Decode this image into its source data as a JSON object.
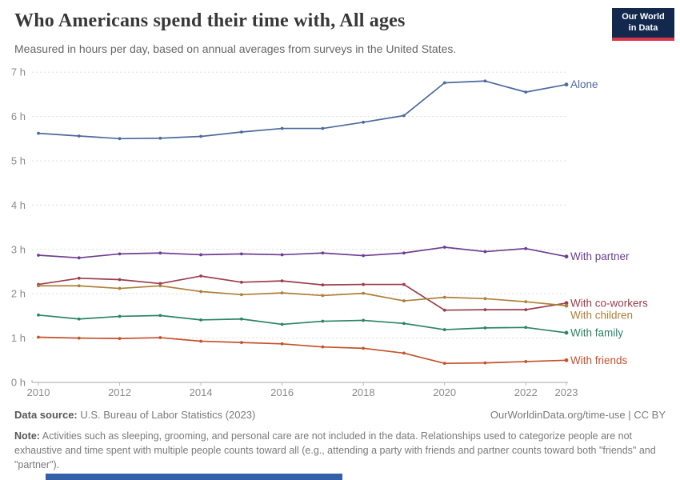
{
  "header": {
    "title": "Who Americans spend their time with, All ages",
    "subtitle": "Measured in hours per day, based on annual averages from surveys in the United States.",
    "logo": {
      "line1": "Our World",
      "line2": "in Data",
      "bg_color": "#12294d",
      "accent_color": "#dc354c"
    }
  },
  "chart_data": {
    "type": "line",
    "x": [
      2010,
      2011,
      2012,
      2013,
      2014,
      2015,
      2016,
      2017,
      2018,
      2019,
      2020,
      2021,
      2022,
      2023
    ],
    "xticks": [
      2010,
      2012,
      2014,
      2016,
      2018,
      2020,
      2022,
      2023
    ],
    "yticks": [
      0,
      1,
      2,
      3,
      4,
      5,
      6,
      7
    ],
    "y_suffix": " h",
    "ylim": [
      0,
      7
    ],
    "grid": true,
    "legend_position": "end-of-line-labels",
    "series": [
      {
        "name": "Alone",
        "color": "#4c6a9c",
        "values": [
          5.62,
          5.56,
          5.5,
          5.51,
          5.55,
          5.65,
          5.73,
          5.73,
          5.87,
          6.02,
          6.76,
          6.8,
          6.55,
          6.72
        ]
      },
      {
        "name": "With partner",
        "color": "#6d3e91",
        "values": [
          2.87,
          2.81,
          2.9,
          2.92,
          2.88,
          2.9,
          2.88,
          2.92,
          2.86,
          2.92,
          3.05,
          2.95,
          3.02,
          2.84
        ]
      },
      {
        "name": "With co-workers",
        "color": "#9a3e4e",
        "values": [
          2.21,
          2.35,
          2.32,
          2.23,
          2.4,
          2.26,
          2.29,
          2.2,
          2.21,
          2.21,
          1.63,
          1.64,
          1.64,
          1.79
        ]
      },
      {
        "name": "With children",
        "color": "#ad8038",
        "values": [
          2.18,
          2.18,
          2.12,
          2.18,
          2.05,
          1.98,
          2.02,
          1.96,
          2.01,
          1.84,
          1.92,
          1.89,
          1.82,
          1.73
        ]
      },
      {
        "name": "With family",
        "color": "#2c8465",
        "values": [
          1.52,
          1.43,
          1.49,
          1.51,
          1.41,
          1.43,
          1.31,
          1.38,
          1.4,
          1.33,
          1.19,
          1.23,
          1.24,
          1.12
        ]
      },
      {
        "name": "With friends",
        "color": "#c4522c",
        "values": [
          1.02,
          1.0,
          0.99,
          1.01,
          0.93,
          0.9,
          0.87,
          0.8,
          0.77,
          0.66,
          0.43,
          0.44,
          0.47,
          0.5
        ]
      }
    ],
    "style": {
      "grid_color": "#dedede",
      "axis_color": "#a5a5a5",
      "tick_label_color": "#8b8b8b"
    }
  },
  "footer": {
    "source_label": "Data source:",
    "source_text": " U.S. Bureau of Labor Statistics (2023)",
    "rights": "OurWorldinData.org/time-use | CC BY",
    "note_label": "Note:",
    "note_text": " Activities such as sleeping, grooming, and personal care are not included in the data. Relationships used to categorize people are not exhaustive and time spent with multiple people counts toward all (e.g., attending a party with friends and partner counts toward both \"friends\" and \"partner\")."
  },
  "timeline": {
    "color": "#3360a9"
  }
}
